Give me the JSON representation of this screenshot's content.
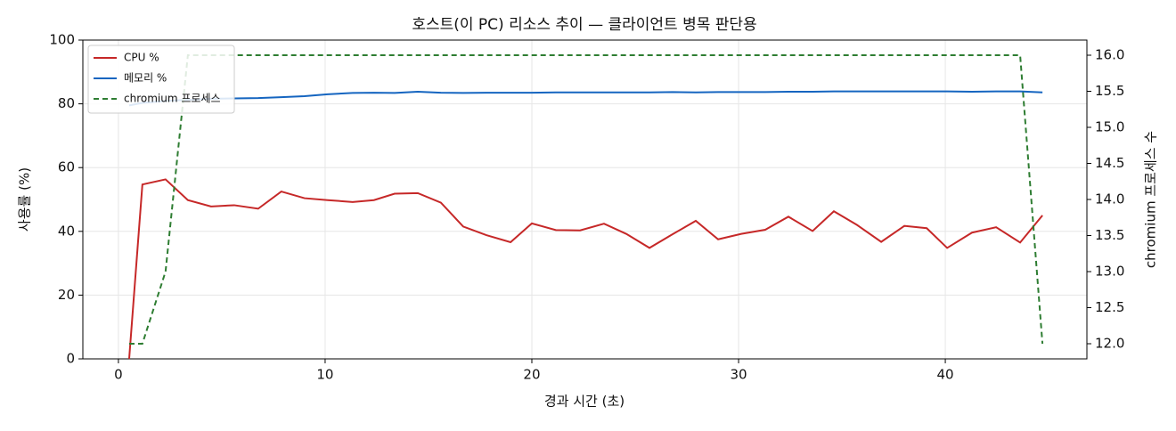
{
  "chart_data": {
    "type": "line",
    "title": "호스트(이 PC) 리소스 추이 — 클라이언트 병목 판단용",
    "xlabel": "경과 시간 (초)",
    "ylabel": "사용률 (%)",
    "y2label": "chromium 프로세스 수",
    "x": [
      0.52,
      1.16,
      2.28,
      3.36,
      4.48,
      5.6,
      6.76,
      7.88,
      9.0,
      10.12,
      11.33,
      12.36,
      13.36,
      14.48,
      15.6,
      16.68,
      17.8,
      18.97,
      20.0,
      21.16,
      22.33,
      23.49,
      24.57,
      25.69,
      26.81,
      27.93,
      29.01,
      30.13,
      31.29,
      32.41,
      33.58,
      34.61,
      35.73,
      36.9,
      38.02,
      39.1,
      40.09,
      41.29,
      42.46,
      43.62,
      44.7
    ],
    "series": [
      {
        "name": "CPU %",
        "color": "#c62828",
        "dash": false,
        "values": [
          0,
          54.7,
          56.3,
          49.8,
          47.8,
          48.2,
          47.1,
          52.5,
          50.4,
          49.8,
          49.2,
          49.8,
          51.8,
          52.0,
          49.0,
          41.5,
          38.8,
          36.6,
          42.5,
          40.4,
          40.3,
          42.4,
          39.2,
          34.8,
          39.1,
          43.3,
          37.5,
          39.2,
          40.5,
          44.6,
          40.1,
          46.3,
          42.0,
          36.7,
          41.7,
          41.0,
          34.8,
          39.6,
          41.3,
          36.5,
          45.0
        ]
      },
      {
        "name": "메모리 %",
        "color": "#1565c0",
        "dash": false,
        "values": [
          79.5,
          80.3,
          80.9,
          81.3,
          81.6,
          81.7,
          81.8,
          82.1,
          82.4,
          83.0,
          83.4,
          83.5,
          83.4,
          83.8,
          83.5,
          83.4,
          83.5,
          83.5,
          83.5,
          83.6,
          83.6,
          83.6,
          83.6,
          83.6,
          83.7,
          83.6,
          83.7,
          83.7,
          83.7,
          83.8,
          83.8,
          83.9,
          83.9,
          83.9,
          83.9,
          83.9,
          83.9,
          83.8,
          83.9,
          83.9,
          83.6
        ]
      },
      {
        "name": "chromium 프로세스",
        "color": "#2e7d32",
        "dash": true,
        "axis": "y2",
        "values": [
          12,
          12,
          13,
          16,
          16,
          16,
          16,
          16,
          16,
          16,
          16,
          16,
          16,
          16,
          16,
          16,
          16,
          16,
          16,
          16,
          16,
          16,
          16,
          16,
          16,
          16,
          16,
          16,
          16,
          16,
          16,
          16,
          16,
          16,
          16,
          16,
          16,
          16,
          16,
          16,
          12
        ]
      }
    ],
    "xlim": [
      -1.72,
      46.85
    ],
    "xticks": [
      0,
      10,
      20,
      30,
      40
    ],
    "ylim": [
      0,
      100
    ],
    "yticks": [
      0,
      20,
      40,
      60,
      80,
      100
    ],
    "y2lim": [
      11.79,
      16.21
    ],
    "y2ticks": [
      {
        "value": 12,
        "label": "12.0"
      },
      {
        "value": 12.5,
        "label": "12.5"
      },
      {
        "value": 13,
        "label": "13.0"
      },
      {
        "value": 13.5,
        "label": "13.5"
      },
      {
        "value": 14,
        "label": "14.0"
      },
      {
        "value": 14.5,
        "label": "14.5"
      },
      {
        "value": 15,
        "label": "15.0"
      },
      {
        "value": 15.5,
        "label": "15.5"
      },
      {
        "value": 16,
        "label": "16.0"
      }
    ],
    "grid": true,
    "legend": "upper-left"
  }
}
